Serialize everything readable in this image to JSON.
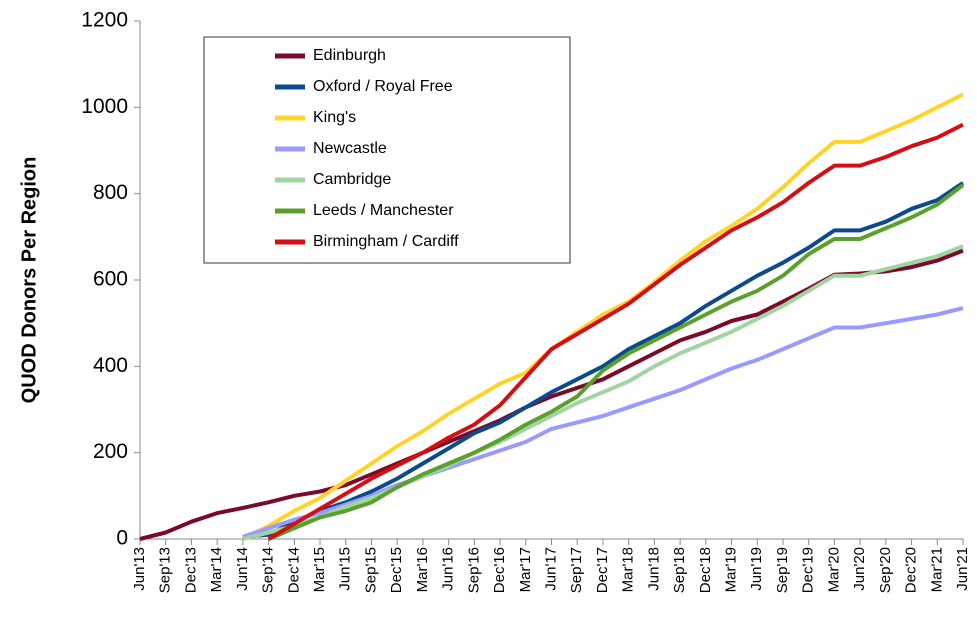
{
  "chart_data": {
    "type": "line",
    "y_label": "QUOD  Donors  Per  Region",
    "categories": [
      "Jun'13",
      "Sep'13",
      "Dec'13",
      "Mar'14",
      "Jun'14",
      "Sep'14",
      "Dec'14",
      "Mar'15",
      "Jun'15",
      "Sep'15",
      "Dec'15",
      "Mar'16",
      "Jun'16",
      "Sep'16",
      "Dec'16",
      "Mar'17",
      "Jun'17",
      "Sep'17",
      "Dec'17",
      "Mar'18",
      "Jun'18",
      "Sep'18",
      "Dec'18",
      "Mar'19",
      "Jun'19",
      "Sep'19",
      "Dec'19",
      "Mar'20",
      "Jun'20",
      "Sep'20",
      "Dec'20",
      "Mar'21",
      "Jun'21"
    ],
    "ylim": [
      0,
      1200
    ],
    "yticks": [
      0,
      200,
      400,
      600,
      800,
      1000,
      1200
    ],
    "legend": "upper left",
    "series": [
      {
        "name": "Edinburgh",
        "color": "#7b0a2a",
        "values": [
          0,
          15,
          40,
          60,
          72,
          85,
          100,
          110,
          125,
          150,
          175,
          200,
          225,
          250,
          275,
          305,
          330,
          350,
          370,
          400,
          430,
          460,
          480,
          505,
          520,
          550,
          580,
          612,
          615,
          620,
          630,
          645,
          668
        ]
      },
      {
        "name": "Oxford / Royal Free",
        "color": "#0b4a8c",
        "values": [
          null,
          null,
          null,
          null,
          5,
          10,
          40,
          65,
          85,
          110,
          140,
          175,
          210,
          245,
          270,
          305,
          340,
          370,
          400,
          440,
          470,
          500,
          540,
          575,
          610,
          640,
          675,
          715,
          715,
          735,
          765,
          785,
          825
        ]
      },
      {
        "name": "King's",
        "color": "#ffd32a",
        "values": [
          null,
          null,
          null,
          null,
          0,
          30,
          65,
          95,
          135,
          175,
          215,
          250,
          290,
          325,
          360,
          385,
          440,
          480,
          520,
          550,
          595,
          645,
          690,
          725,
          765,
          815,
          870,
          920,
          920,
          945,
          970,
          1000,
          1030
        ]
      },
      {
        "name": "Newcastle",
        "color": "#9999ff",
        "values": [
          null,
          null,
          null,
          null,
          5,
          25,
          45,
          60,
          80,
          100,
          125,
          145,
          165,
          185,
          205,
          225,
          255,
          270,
          285,
          305,
          325,
          345,
          370,
          395,
          415,
          440,
          465,
          490,
          490,
          500,
          510,
          520,
          535
        ]
      },
      {
        "name": "Cambridge",
        "color": "#a0d4a0",
        "values": [
          null,
          null,
          null,
          null,
          0,
          15,
          30,
          50,
          75,
          95,
          120,
          145,
          170,
          200,
          225,
          255,
          285,
          315,
          340,
          365,
          400,
          430,
          455,
          480,
          510,
          540,
          575,
          610,
          610,
          625,
          640,
          655,
          678
        ]
      },
      {
        "name": "Leeds / Manchester",
        "color": "#5aa02c",
        "values": [
          null,
          null,
          null,
          null,
          null,
          0,
          25,
          50,
          65,
          85,
          120,
          150,
          175,
          200,
          230,
          265,
          295,
          330,
          390,
          430,
          460,
          490,
          520,
          550,
          575,
          610,
          660,
          695,
          695,
          720,
          745,
          775,
          820
        ]
      },
      {
        "name": "Birmingham / Cardiff",
        "color": "#d40f14",
        "values": [
          null,
          null,
          null,
          null,
          null,
          0,
          35,
          70,
          105,
          140,
          170,
          200,
          235,
          265,
          310,
          375,
          440,
          475,
          510,
          545,
          590,
          635,
          675,
          715,
          745,
          780,
          825,
          865,
          865,
          885,
          910,
          930,
          960
        ]
      }
    ]
  }
}
